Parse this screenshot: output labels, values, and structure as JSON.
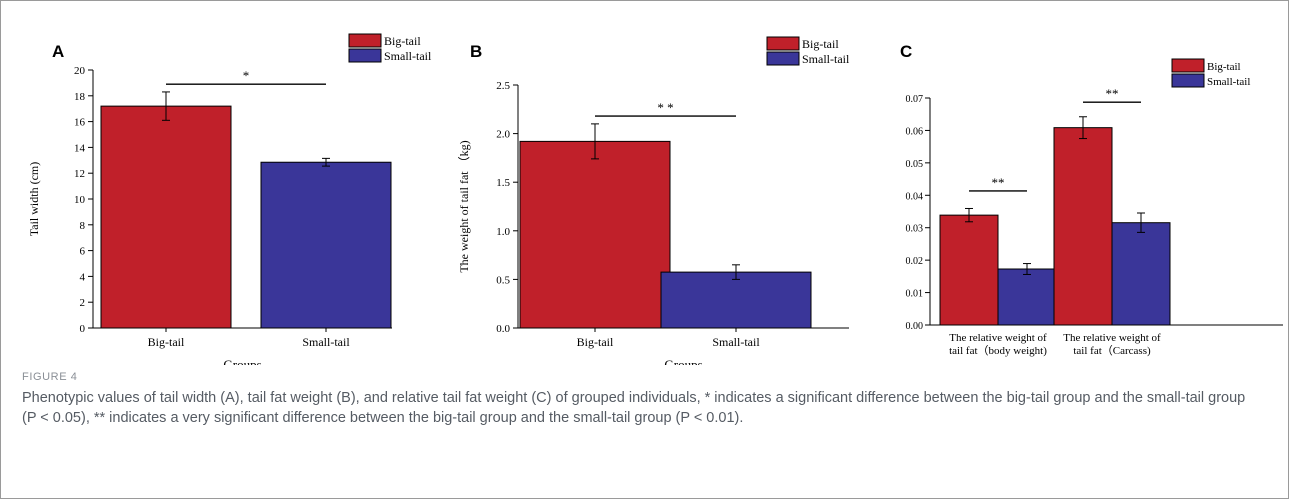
{
  "colors": {
    "big_tail": "#c0202a",
    "small_tail": "#3a3699",
    "axis": "#000000"
  },
  "legend_labels": [
    "Big-tail",
    "Small-tail"
  ],
  "chart_data": [
    {
      "type": "bar",
      "panel": "A",
      "categories": [
        "Big-tail",
        "Small-tail"
      ],
      "values": [
        17.2,
        12.85
      ],
      "errors": [
        1.1,
        0.3
      ],
      "xlabel": "Groups",
      "ylabel": "Tail width (cm)",
      "ylim": [
        0,
        20
      ],
      "yticks": [
        "0",
        "2",
        "4",
        "6",
        "8",
        "10",
        "12",
        "14",
        "16",
        "18",
        "20"
      ],
      "significance": [
        {
          "label": "*",
          "from": 0,
          "to": 1,
          "y": 18.9
        }
      ],
      "legend_position": "top-right"
    },
    {
      "type": "bar",
      "panel": "B",
      "categories": [
        "Big-tail",
        "Small-tail"
      ],
      "values": [
        1.92,
        0.575
      ],
      "errors": [
        0.18,
        0.075
      ],
      "xlabel": "Groups",
      "ylabel": "The weight of tail fat （kg)",
      "ylim": [
        0,
        2.5
      ],
      "yticks": [
        "0.0",
        "0.5",
        "1.0",
        "1.5",
        "2.0",
        "2.5"
      ],
      "significance": [
        {
          "label": "* *",
          "from": 0,
          "to": 1,
          "y": 2.18
        }
      ],
      "legend_position": "top-right"
    },
    {
      "type": "bar",
      "panel": "C",
      "categories": [
        [
          "The relative weight of",
          "tail fat（body weight)"
        ],
        [
          "The relative weight of",
          "tail fat（Carcass)"
        ]
      ],
      "series": [
        {
          "name": "Big-tail",
          "values": [
            0.0363,
            0.0652
          ],
          "errors": [
            0.0022,
            0.0036
          ]
        },
        {
          "name": "Small-tail",
          "values": [
            0.0185,
            0.0338
          ],
          "errors": [
            0.0018,
            0.0032
          ]
        }
      ],
      "xlabel": "",
      "ylabel": "",
      "ylim": [
        0,
        0.075
      ],
      "yticks": [
        "0.00",
        "0.01",
        "0.02",
        "0.03",
        "0.04",
        "0.05",
        "0.06",
        "0.07"
      ],
      "significance": [
        {
          "label": "**",
          "group": 0,
          "y": 0.0443
        },
        {
          "label": "**",
          "group": 1,
          "y": 0.0736
        }
      ],
      "legend_position": "top-right"
    }
  ],
  "caption": {
    "label": "FIGURE 4",
    "text": "Phenotypic values of tail width (A), tail fat weight (B), and relative tail fat weight (C) of grouped individuals, * indicates a significant difference between the big-tail group and the small-tail group (P < 0.05), ** indicates a very significant difference between the big-tail group and the small-tail group (P < 0.01)."
  }
}
